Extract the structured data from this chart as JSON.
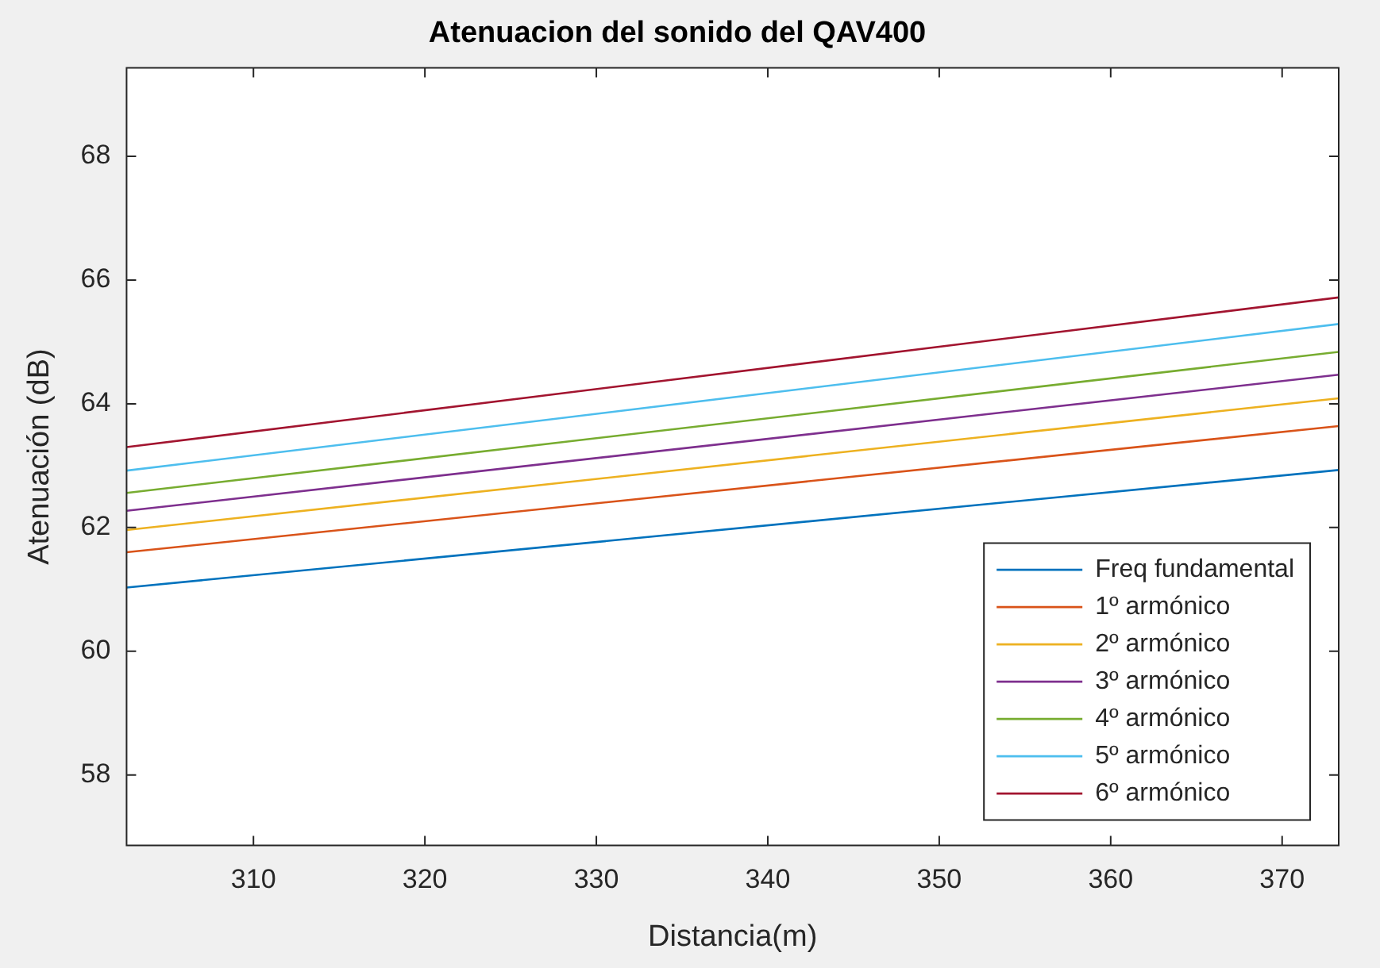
{
  "chart_data": {
    "type": "line",
    "title": "Atenuacion del sonido del QAV400",
    "xlabel": "Distancia(m)",
    "ylabel": "Atenuación (dB)",
    "x": [
      302.6,
      373.3
    ],
    "series": [
      {
        "name": "Freq fundamental",
        "color": "#0072bd",
        "values": [
          61.03,
          62.93
        ]
      },
      {
        "name": "1º armónico",
        "color": "#d95319",
        "values": [
          61.6,
          63.64
        ]
      },
      {
        "name": "2º armónico",
        "color": "#edb120",
        "values": [
          61.96,
          64.09
        ]
      },
      {
        "name": "3º armónico",
        "color": "#7e2f8e",
        "values": [
          62.27,
          64.47
        ]
      },
      {
        "name": "4º armónico",
        "color": "#77ac30",
        "values": [
          62.56,
          64.84
        ]
      },
      {
        "name": "5º armónico",
        "color": "#4dbeee",
        "values": [
          62.92,
          65.29
        ]
      },
      {
        "name": "6º armónico",
        "color": "#a2142f",
        "values": [
          63.3,
          65.72
        ]
      }
    ],
    "xlim": [
      302.6,
      373.3
    ],
    "xticks": [
      310,
      320,
      330,
      340,
      350,
      360,
      370
    ],
    "ylim": [
      56.86,
      69.43
    ],
    "yticks": [
      58,
      60,
      62,
      64,
      66,
      68
    ],
    "grid": false,
    "legend": "bottom right",
    "marker": "none",
    "line_style": "solid"
  }
}
